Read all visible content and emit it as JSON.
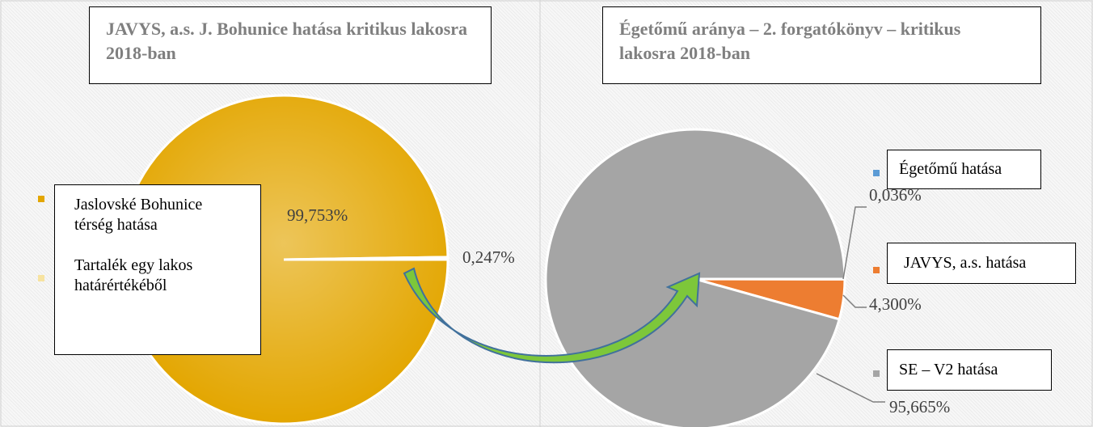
{
  "chart_data": [
    {
      "type": "pie",
      "title": "JAVYS, a.s. J. Bohunice hatása kritikus lakosra 2018-ban",
      "categories": [
        "Jaslovské Bohunice térség hatása",
        "Tartalék egy lakos határértékéből"
      ],
      "values": [
        99.753,
        0.247
      ],
      "value_labels": [
        "99,753%",
        "0,247%"
      ],
      "colors": [
        "#e3a600",
        "#f7e3a0"
      ]
    },
    {
      "type": "pie",
      "title": "Égetőmű aránya – 2. forgatókönyv – kritikus lakosra 2018-ban",
      "categories": [
        "Égetőmű hatása",
        "JAVYS, a.s. hatása",
        "SE – V2 hatása"
      ],
      "values": [
        0.036,
        4.3,
        95.665
      ],
      "value_labels": [
        "0,036%",
        "4,300%",
        "95,665%"
      ],
      "colors": [
        "#5b9bd5",
        "#ed7d31",
        "#a5a5a5"
      ]
    }
  ]
}
